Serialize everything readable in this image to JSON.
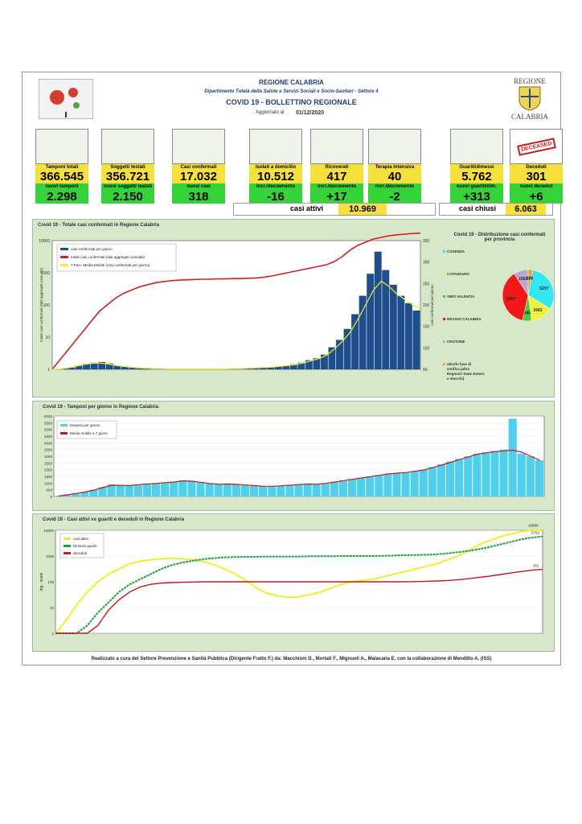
{
  "header": {
    "region": "REGIONE CALABRIA",
    "department": "Dipartimento Tutela della Salute e Servizi Sociali e Socio-Sanitari - Settore 4",
    "title": "COVID 19 - BOLLETTINO REGIONALE",
    "updated_label": "Aggiornato al",
    "updated_date": "01/12/2020",
    "logo_top": "REGIONE",
    "logo_bottom": "CALABRIA"
  },
  "stats": [
    {
      "label": "Tamponi totali",
      "value": "366.545",
      "sub_label": "nuovi tamponi",
      "sub_value": "2.298",
      "icon": "lab-test-icon"
    },
    {
      "label": "Soggetti testati",
      "value": "356.721",
      "sub_label": "nuovi soggetti testati",
      "sub_value": "2.150",
      "icon": "people-grid-icon"
    },
    {
      "label": "Casi confermati",
      "value": "17.032",
      "sub_label": "nuovi casi",
      "sub_value": "318",
      "icon": "virus-people-icon"
    },
    {
      "label": "Isolati a domicilio",
      "value": "10.512",
      "sub_label": "incr./decremento",
      "sub_value": "-16",
      "icon": "house-icon"
    },
    {
      "label": "Ricoverati",
      "value": "417",
      "sub_label": "incr./decremento",
      "sub_value": "+17",
      "icon": "hospital-bed-icon"
    },
    {
      "label": "Terapia intensiva",
      "value": "40",
      "sub_label": "incr./decremento",
      "sub_value": "-2",
      "icon": "icu-bed-icon"
    },
    {
      "label": "Guariti/dimessi",
      "value": "5.762",
      "sub_label": "nuovi guariti/dim.",
      "sub_value": "+313",
      "icon": "recovered-person-icon"
    },
    {
      "label": "Deceduti",
      "value": "301",
      "sub_label": "nuovi decedut",
      "sub_value": "+6",
      "icon": "deceased-stamp-icon"
    }
  ],
  "summary": {
    "active_label": "casi attivi",
    "active_value": "10.969",
    "closed_label": "casi chiusi",
    "closed_value": "6.063"
  },
  "deceased_stamp": "DECEASED",
  "chart_data": [
    {
      "type": "bar",
      "title": "Covid 19 - Totale casi confermati in Regione Calabria",
      "ylabel": "totale casi confermati (dati aggregati cumulati)",
      "y2label": "casi confermati per giorno",
      "legend": [
        "casi confermati per giorno",
        "totale casi confermati (dati aggregati cumulati)",
        "7 Perc. Media Mobile (casi confermati per giorno)"
      ],
      "legend_position": "top-left",
      "yticks": [
        "10000",
        "1000",
        "100",
        "10",
        "1"
      ],
      "y2ticks": [
        "350",
        "300",
        "250",
        "200",
        "150",
        "100",
        "50"
      ],
      "cumulative_log10": [
        0,
        0.3,
        0.6,
        0.9,
        1.2,
        1.5,
        1.8,
        2.0,
        2.2,
        2.35,
        2.45,
        2.55,
        2.62,
        2.68,
        2.72,
        2.75,
        2.77,
        2.78,
        2.79,
        2.8,
        2.8,
        2.81,
        2.81,
        2.82,
        2.82,
        2.83,
        2.84,
        2.86,
        2.9,
        2.95,
        3.0,
        3.05,
        3.1,
        3.15,
        3.2,
        3.25,
        3.35,
        3.5,
        3.7,
        3.85,
        3.95,
        4.05,
        4.1,
        4.15,
        4.18,
        4.2,
        4.22,
        4.23
      ],
      "daily": [
        0,
        2,
        5,
        10,
        15,
        18,
        20,
        16,
        10,
        8,
        5,
        4,
        3,
        2,
        2,
        1,
        1,
        1,
        1,
        2,
        1,
        1,
        1,
        2,
        2,
        3,
        4,
        5,
        6,
        8,
        10,
        14,
        18,
        25,
        30,
        40,
        60,
        80,
        110,
        150,
        200,
        260,
        320,
        270,
        230,
        200,
        180,
        160
      ],
      "moving_avg": [
        0,
        1,
        4,
        8,
        13,
        16,
        17,
        15,
        11,
        8,
        6,
        4,
        3,
        2,
        2,
        1,
        1,
        1,
        1,
        1,
        1,
        1,
        1,
        2,
        2,
        3,
        4,
        5,
        6,
        8,
        10,
        13,
        17,
        23,
        29,
        38,
        55,
        75,
        100,
        135,
        175,
        215,
        240,
        225,
        205,
        190,
        175,
        165
      ]
    },
    {
      "type": "pie",
      "title": "Covid 19 - Distribuzione casi confermati per provincia",
      "legend_position": "left",
      "categories": [
        "COSENZA",
        "CATANZARO",
        "VIBO VALENTIA",
        "REGGIO CALABRIA",
        "CROTONE",
        "altra/in fase di verifica (altra Regione/ Stato Estero e sbarchi)"
      ],
      "values": [
        5237,
        2443,
        945,
        6357,
        1562,
        488
      ],
      "colors": [
        "#33e6f2",
        "#f2f23a",
        "#3ad13a",
        "#f21818",
        "#b9a7d1",
        "#f2a033"
      ]
    },
    {
      "type": "bar",
      "title": "Covid 19 - Tamponi per giorno in Regione Calabria",
      "legend": [
        "tamponi per giorno",
        "Media mobile a 7 giorni"
      ],
      "legend_position": "top-left",
      "yticks": [
        "6000",
        "5500",
        "5000",
        "4500",
        "4000",
        "3500",
        "3000",
        "2500",
        "2000",
        "1500",
        "1000",
        "500",
        "0"
      ],
      "ylim": [
        0,
        6000
      ],
      "values": [
        50,
        150,
        250,
        350,
        500,
        700,
        900,
        850,
        800,
        900,
        950,
        1000,
        1050,
        1100,
        1200,
        1150,
        1050,
        950,
        900,
        950,
        900,
        850,
        800,
        750,
        750,
        800,
        850,
        900,
        950,
        900,
        1000,
        1100,
        1200,
        1300,
        1400,
        1500,
        1600,
        1700,
        1750,
        1800,
        1900,
        2000,
        2200,
        2400,
        2600,
        2800,
        3000,
        3200,
        3300,
        3400,
        3500,
        5800,
        3200,
        3000,
        2700
      ],
      "moving_avg": [
        40,
        120,
        220,
        330,
        480,
        660,
        840,
        830,
        810,
        880,
        930,
        980,
        1030,
        1080,
        1170,
        1140,
        1060,
        960,
        910,
        930,
        900,
        860,
        810,
        770,
        760,
        800,
        840,
        890,
        930,
        910,
        980,
        1080,
        1180,
        1280,
        1380,
        1480,
        1580,
        1680,
        1740,
        1790,
        1880,
        1980,
        2150,
        2350,
        2550,
        2750,
        2950,
        3150,
        3250,
        3350,
        3400,
        3450,
        3300,
        3000,
        2700
      ]
    },
    {
      "type": "line",
      "title": "Covid 19 - Casi attivi vs guariti e decedutl in Regione Calabria",
      "ylabel": "log - scale",
      "legend": [
        "casi attivi",
        "Dimessi guariti",
        "deceduti"
      ],
      "legend_position": "top-left",
      "yticks": [
        "10000",
        "1000",
        "100",
        "10",
        "1"
      ],
      "annotations": [
        "10969",
        "5762",
        "301"
      ],
      "active_log10": [
        0,
        0.5,
        1.1,
        1.6,
        2.0,
        2.3,
        2.5,
        2.7,
        2.8,
        2.85,
        2.9,
        2.92,
        2.9,
        2.85,
        2.78,
        2.65,
        2.5,
        2.3,
        2.05,
        1.75,
        1.55,
        1.45,
        1.4,
        1.42,
        1.5,
        1.6,
        1.75,
        1.9,
        2.0,
        2.05,
        2.1,
        2.2,
        2.3,
        2.4,
        2.5,
        2.6,
        2.7,
        2.85,
        3.0,
        3.2,
        3.45,
        3.6,
        3.75,
        3.85,
        3.95,
        4.0,
        4.04
      ],
      "recovered_log10": [
        0,
        0,
        0,
        0.3,
        0.8,
        1.2,
        1.6,
        1.9,
        2.1,
        2.3,
        2.5,
        2.65,
        2.75,
        2.82,
        2.88,
        2.92,
        2.95,
        2.96,
        2.97,
        2.97,
        2.98,
        2.98,
        2.98,
        2.98,
        2.99,
        2.99,
        2.99,
        3.0,
        3.0,
        3.0,
        3.0,
        3.01,
        3.02,
        3.03,
        3.04,
        3.05,
        3.07,
        3.1,
        3.15,
        3.2,
        3.27,
        3.35,
        3.45,
        3.55,
        3.65,
        3.72,
        3.76
      ],
      "deaths_log10": [
        0,
        0,
        0,
        0,
        0.3,
        0.9,
        1.3,
        1.6,
        1.8,
        1.9,
        1.95,
        1.97,
        1.98,
        1.99,
        2.0,
        2.0,
        2.0,
        2.0,
        2.0,
        2.0,
        2.0,
        2.0,
        2.0,
        2.0,
        2.0,
        2.0,
        2.0,
        2.0,
        2.0,
        2.0,
        2.0,
        2.0,
        2.0,
        2.0,
        2.01,
        2.02,
        2.03,
        2.05,
        2.08,
        2.12,
        2.17,
        2.22,
        2.28,
        2.34,
        2.4,
        2.45,
        2.48
      ]
    }
  ],
  "footer": "Realizzato a cura del Settore Prevenzione e Sanità Pubblica (Dirigente Fratto F.) da: Macchioni D., Mortati F., Mignuoli A., Malacaria E. con la collaborazione di Menditto A. (ISS)"
}
